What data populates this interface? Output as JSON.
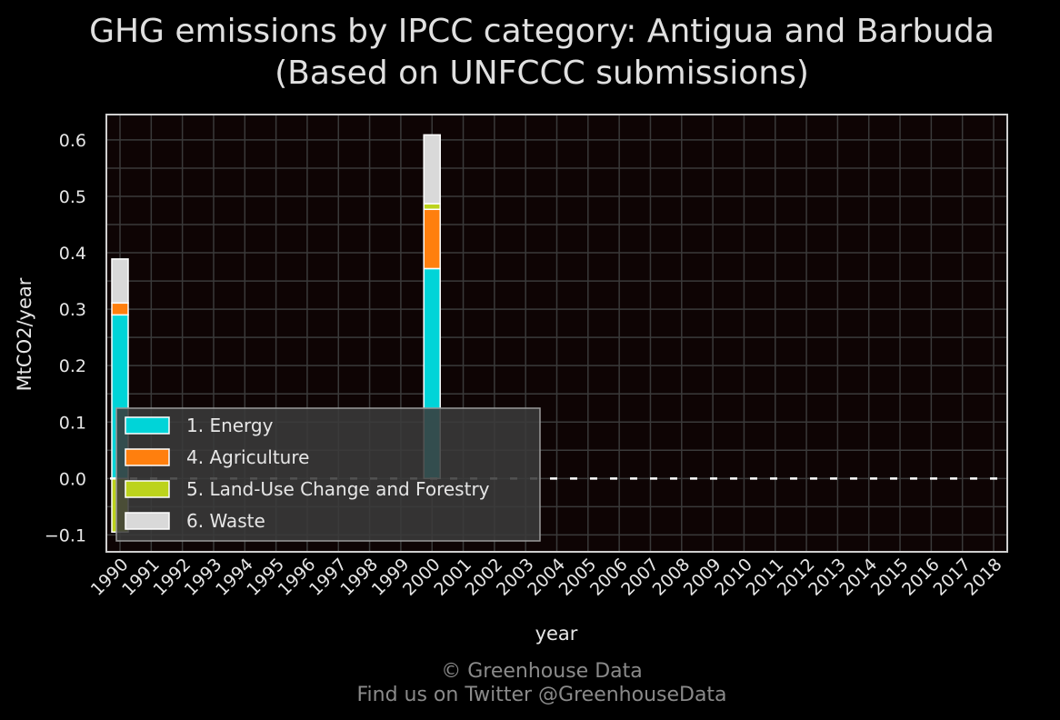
{
  "chart_data": {
    "type": "bar",
    "stacked": true,
    "title_line1": "GHG emissions by IPCC category: Antigua and Barbuda",
    "title_line2": "(Based on UNFCCC submissions)",
    "xlabel": "year",
    "ylabel": "MtCO2/year",
    "ylim": [
      -0.13,
      0.645
    ],
    "yticks": [
      -0.1,
      0.0,
      0.1,
      0.2,
      0.3,
      0.4,
      0.5,
      0.6
    ],
    "ytick_labels": [
      "−0.1",
      "0.0",
      "0.1",
      "0.2",
      "0.3",
      "0.4",
      "0.5",
      "0.6"
    ],
    "grid": true,
    "legend_position": "lower-left",
    "categories": [
      "1990",
      "1991",
      "1992",
      "1993",
      "1994",
      "1995",
      "1996",
      "1997",
      "1998",
      "1999",
      "2000",
      "2001",
      "2002",
      "2003",
      "2004",
      "2005",
      "2006",
      "2007",
      "2008",
      "2009",
      "2010",
      "2011",
      "2012",
      "2013",
      "2014",
      "2015",
      "2016",
      "2017",
      "2018"
    ],
    "series": [
      {
        "name": "1. Energy",
        "color": "#00d4d8",
        "values": [
          0.29,
          0,
          0,
          0,
          0,
          0,
          0,
          0,
          0,
          0,
          0.372,
          0,
          0,
          0,
          0,
          0,
          0,
          0,
          0,
          0,
          0,
          0,
          0,
          0,
          0,
          0,
          0,
          0,
          0
        ]
      },
      {
        "name": "4. Agriculture",
        "color": "#ff7f0e",
        "values": [
          0.021,
          0,
          0,
          0,
          0,
          0,
          0,
          0,
          0,
          0,
          0.105,
          0,
          0,
          0,
          0,
          0,
          0,
          0,
          0,
          0,
          0,
          0,
          0,
          0,
          0,
          0,
          0,
          0,
          0
        ]
      },
      {
        "name": "5. Land-Use Change and Forestry",
        "color": "#bcd31c",
        "values": [
          -0.095,
          0,
          0,
          0,
          0,
          0,
          0,
          0,
          0,
          0,
          0.01,
          0,
          0,
          0,
          0,
          0,
          0,
          0,
          0,
          0,
          0,
          0,
          0,
          0,
          0,
          0,
          0,
          0,
          0
        ]
      },
      {
        "name": "6. Waste",
        "color": "#d9d9d9",
        "values": [
          0.078,
          0,
          0,
          0,
          0,
          0,
          0,
          0,
          0,
          0,
          0.122,
          0,
          0,
          0,
          0,
          0,
          0,
          0,
          0,
          0,
          0,
          0,
          0,
          0,
          0,
          0,
          0,
          0,
          0
        ]
      }
    ]
  },
  "footer_line1": "© Greenhouse Data",
  "footer_line2": "Find us on Twitter @GreenhouseData",
  "colors": {
    "background": "#000000",
    "plot_background": "#0e0404",
    "grid": "#3a3a3a",
    "frame": "#cfcfcf"
  }
}
